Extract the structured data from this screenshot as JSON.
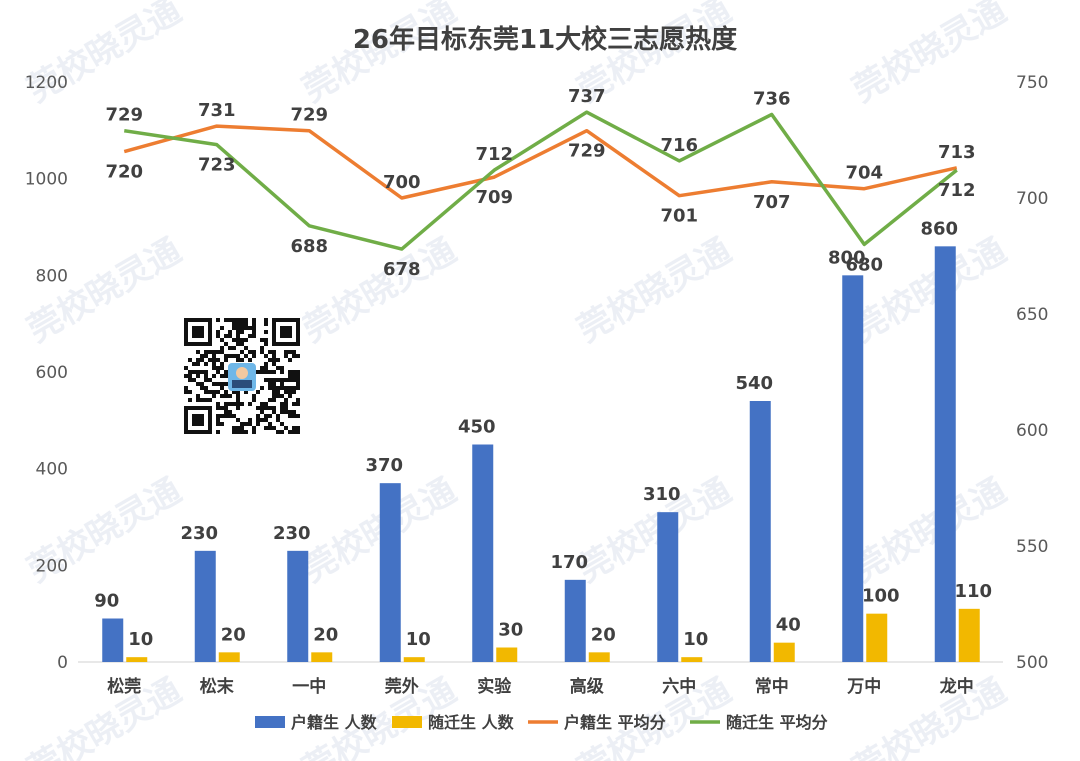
{
  "chart_data": {
    "type": "bar",
    "title": "26年目标东莞11大校三志愿热度",
    "categories": [
      "松莞",
      "松末",
      "一中",
      "莞外",
      "实验",
      "高级",
      "六中",
      "常中",
      "万中",
      "龙中"
    ],
    "y_left": {
      "ylim": [
        0,
        1200
      ],
      "ticks": [
        0,
        200,
        400,
        600,
        800,
        1000,
        1200
      ]
    },
    "y_right": {
      "ylim": [
        500,
        750
      ],
      "ticks": [
        500,
        550,
        600,
        650,
        700,
        750
      ]
    },
    "series": [
      {
        "name": "户籍生 人数",
        "kind": "bar",
        "axis": "left",
        "color": "#4472C4",
        "values": [
          90,
          230,
          230,
          370,
          450,
          170,
          310,
          540,
          800,
          860
        ]
      },
      {
        "name": "随迁生 人数",
        "kind": "bar",
        "axis": "left",
        "color": "#F2B800",
        "values": [
          10,
          20,
          20,
          10,
          30,
          20,
          10,
          40,
          100,
          110
        ]
      },
      {
        "name": "户籍生 平均分",
        "kind": "line",
        "axis": "right",
        "color": "#ED7D31",
        "values": [
          720,
          731,
          729,
          700,
          709,
          729,
          701,
          707,
          704,
          713
        ]
      },
      {
        "name": "随迁生 平均分",
        "kind": "line",
        "axis": "right",
        "color": "#70AD47",
        "values": [
          729,
          723,
          688,
          678,
          712,
          737,
          716,
          736,
          680,
          712
        ]
      }
    ],
    "legend_position": "bottom",
    "grid": false
  },
  "watermark": "莞校晓灵通"
}
